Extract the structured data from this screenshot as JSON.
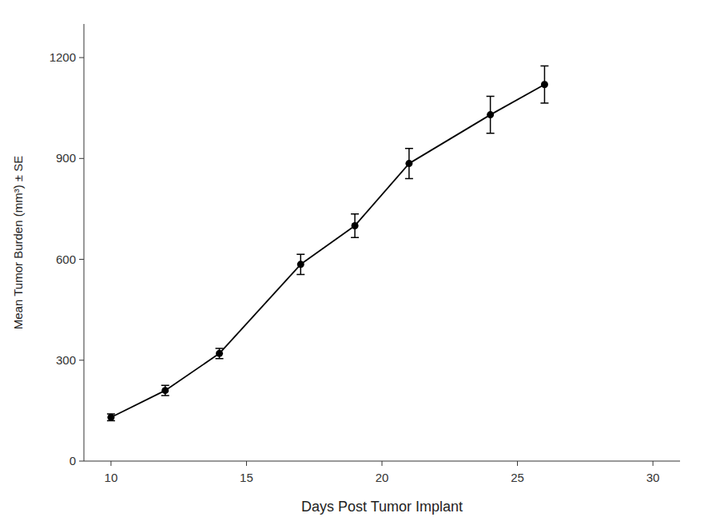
{
  "chart_data": {
    "type": "line",
    "x": [
      10,
      12,
      14,
      17,
      19,
      21,
      24,
      26
    ],
    "values": [
      130,
      210,
      320,
      585,
      700,
      885,
      1030,
      1120
    ],
    "yerr": [
      10,
      15,
      15,
      30,
      35,
      45,
      55,
      55
    ],
    "xlabel": "Days Post Tumor Implant",
    "ylabel": "Mean Tumor Burden (mm³) ± SE",
    "xlim": [
      9,
      31
    ],
    "ylim": [
      0,
      1300
    ],
    "xticks": [
      10,
      15,
      20,
      25,
      30
    ],
    "yticks": [
      0,
      300,
      600,
      900,
      1200
    ],
    "color": "#000000",
    "marker": "circle",
    "line_style": "solid",
    "grid": false
  }
}
